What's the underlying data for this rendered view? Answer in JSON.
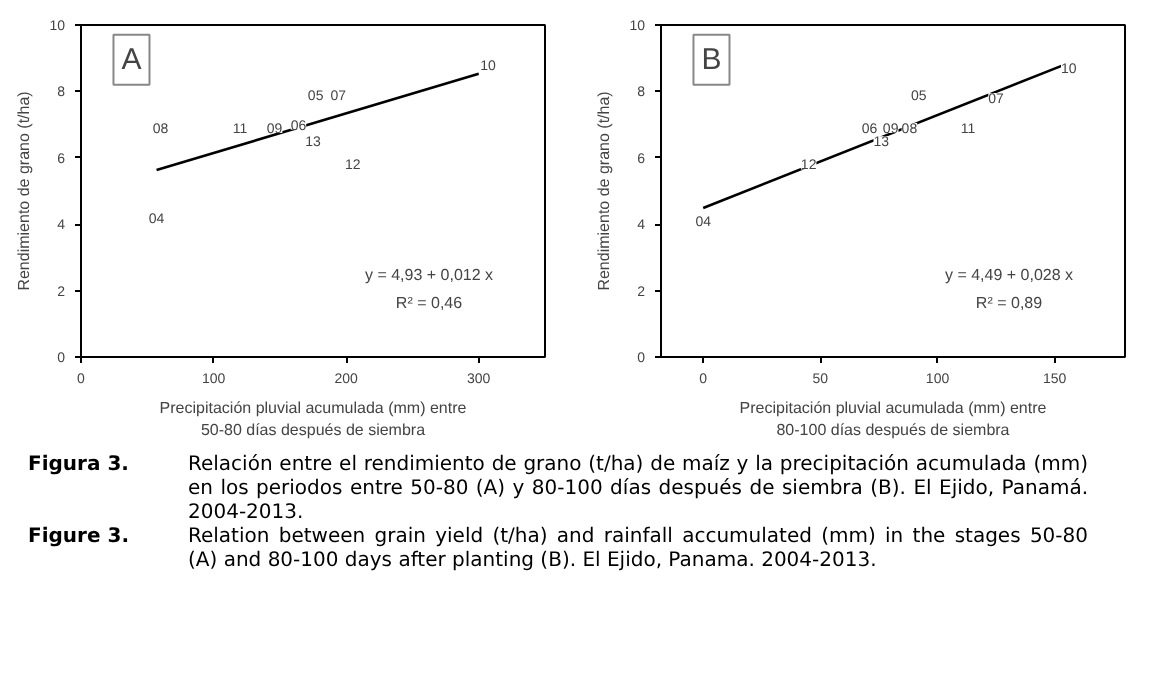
{
  "chart_data": [
    {
      "type": "scatter",
      "title": "A",
      "xlabel": "Precipitación pluvial acumulada (mm) entre\n50-80 días después de siembra",
      "ylabel": "Rendimiento de grano (t/ha)",
      "xlim": [
        0,
        350
      ],
      "xticks": [
        0,
        100,
        200,
        300
      ],
      "ylim": [
        0,
        10
      ],
      "yticks": [
        0,
        2,
        4,
        6,
        8,
        10
      ],
      "grid": false,
      "series": [
        {
          "type": "line",
          "color": "#000000",
          "x": [
            57,
            300
          ],
          "values": [
            5.63,
            8.53
          ]
        }
      ],
      "annotations": [
        {
          "text": "04",
          "x": 57,
          "y": 4.2
        },
        {
          "text": "08",
          "x": 60,
          "y": 6.9
        },
        {
          "text": "11",
          "x": 120,
          "y": 6.9
        },
        {
          "text": "09",
          "x": 146,
          "y": 6.9
        },
        {
          "text": "06",
          "x": 164,
          "y": 7.0
        },
        {
          "text": "13",
          "x": 175,
          "y": 6.5
        },
        {
          "text": "05",
          "x": 177,
          "y": 7.9
        },
        {
          "text": "07",
          "x": 194,
          "y": 7.9
        },
        {
          "text": "12",
          "x": 205,
          "y": 5.8
        },
        {
          "text": "10",
          "x": 307,
          "y": 8.8
        },
        "y = 4,93 + 0,012 x",
        "R² = 0,46"
      ]
    },
    {
      "type": "scatter",
      "title": "B",
      "xlabel": "Precipitación pluvial acumulada (mm) entre\n80-100 días después de siembra",
      "ylabel": "Rendimiento de grano (t/ha)",
      "xlim": [
        -18,
        180
      ],
      "xticks": [
        0,
        50,
        100,
        150
      ],
      "ylim": [
        0,
        10
      ],
      "yticks": [
        0,
        2,
        4,
        6,
        8,
        10
      ],
      "grid": false,
      "series": [
        {
          "type": "line",
          "color": "#000000",
          "x": [
            0,
            154
          ],
          "values": [
            4.49,
            8.8
          ]
        }
      ],
      "annotations": [
        {
          "text": "04",
          "x": 0,
          "y": 4.1
        },
        {
          "text": "12",
          "x": 45,
          "y": 5.8
        },
        {
          "text": "06",
          "x": 71,
          "y": 6.9
        },
        {
          "text": "13",
          "x": 76,
          "y": 6.5
        },
        {
          "text": "09",
          "x": 80,
          "y": 6.9
        },
        {
          "text": "08",
          "x": 88,
          "y": 6.9
        },
        {
          "text": "05",
          "x": 92,
          "y": 7.9
        },
        {
          "text": "11",
          "x": 113,
          "y": 6.9
        },
        {
          "text": "07",
          "x": 125,
          "y": 7.8
        },
        {
          "text": "10",
          "x": 156,
          "y": 8.7
        },
        "y = 4,49 + 0,028 x",
        "R² = 0,89"
      ]
    },
    {
      "type": "other",
      "annotations": [
        "Figura 3.",
        "Relación entre el rendimiento de grano (t/ha) de maíz y la precipitación acumulada (mm) en los periodos entre 50-80 (A) y 80-100 días después de siembra (B). El Ejido, Panamá. 2004-2013.",
        "Figure 3.",
        "Relation between grain yield (t/ha) and rainfall accumulated (mm) in the stages 50-80 (A) and 80-100 days after planting (B). El Ejido, Panama. 2004-2013."
      ]
    }
  ]
}
